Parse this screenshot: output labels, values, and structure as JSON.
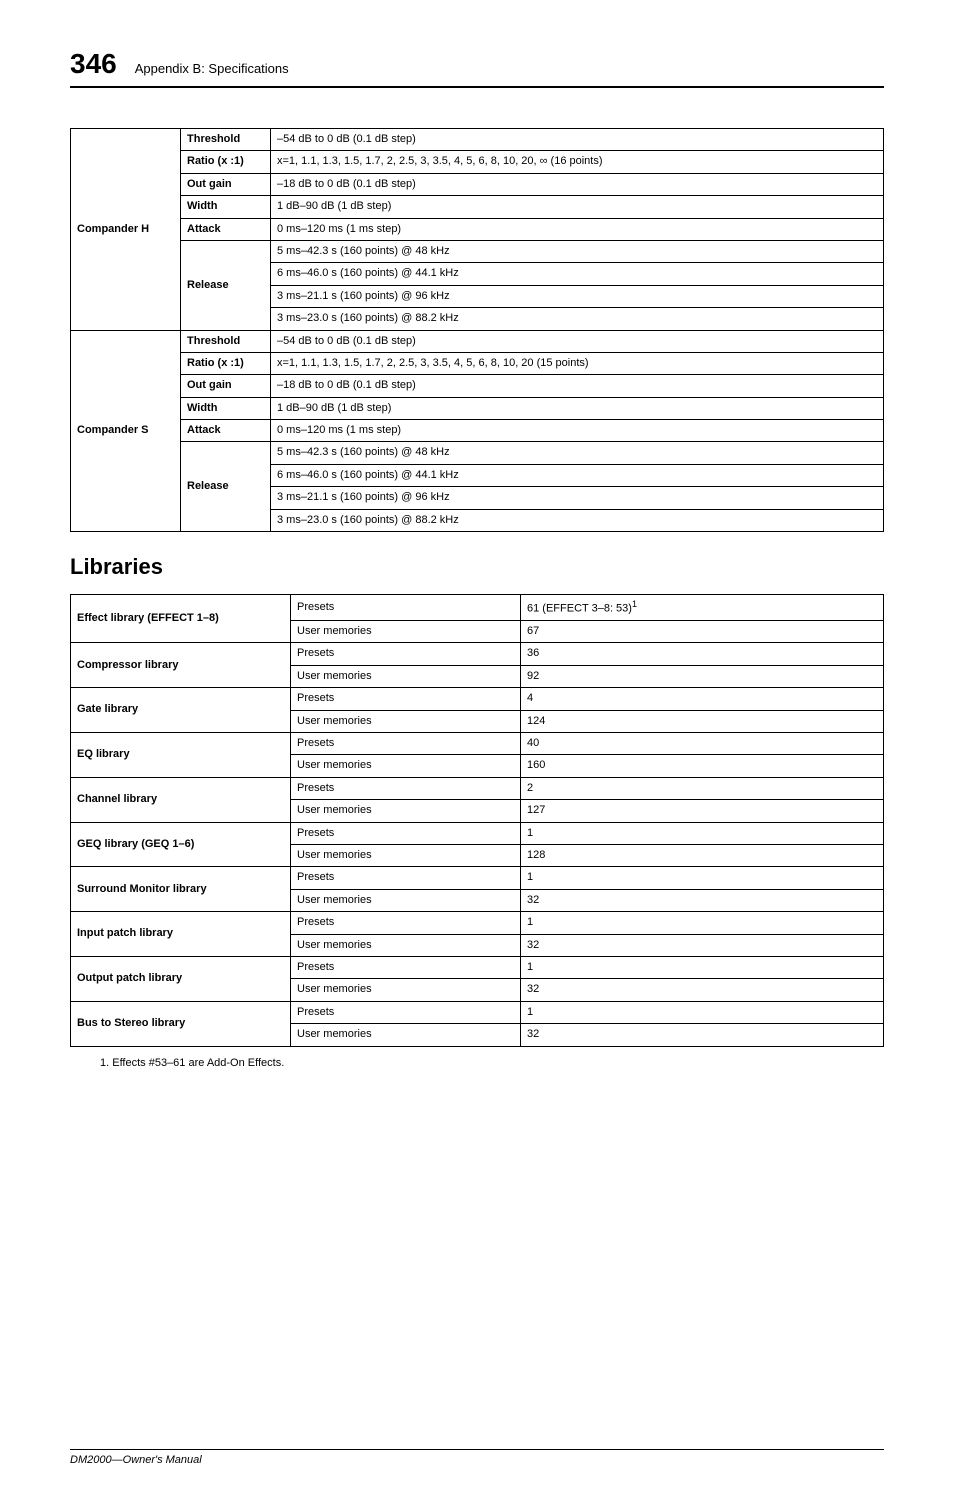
{
  "header": {
    "page_number": "346",
    "section": "Appendix B: Specifications"
  },
  "table1": {
    "groups": [
      {
        "name": "Compander H",
        "rows": [
          {
            "param": "Threshold",
            "vals": [
              "–54 dB to 0 dB (0.1 dB step)"
            ]
          },
          {
            "param": "Ratio (x :1)",
            "vals": [
              "x=1, 1.1, 1.3, 1.5, 1.7, 2, 2.5, 3, 3.5, 4, 5, 6, 8, 10, 20, ∞ (16 points)"
            ]
          },
          {
            "param": "Out gain",
            "vals": [
              "–18 dB to 0 dB (0.1 dB step)"
            ]
          },
          {
            "param": "Width",
            "vals": [
              "1 dB–90 dB (1 dB step)"
            ]
          },
          {
            "param": "Attack",
            "vals": [
              "0 ms–120 ms (1 ms step)"
            ]
          },
          {
            "param": "Release",
            "vals": [
              "5 ms–42.3 s (160 points) @ 48 kHz",
              "6 ms–46.0 s (160 points) @ 44.1 kHz",
              "3 ms–21.1 s (160 points) @ 96 kHz",
              "3 ms–23.0 s (160 points) @ 88.2 kHz"
            ]
          }
        ]
      },
      {
        "name": "Compander S",
        "rows": [
          {
            "param": "Threshold",
            "vals": [
              "–54 dB to 0 dB (0.1 dB step)"
            ]
          },
          {
            "param": "Ratio (x :1)",
            "vals": [
              "x=1, 1.1, 1.3, 1.5, 1.7, 2, 2.5, 3, 3.5, 4, 5, 6, 8, 10, 20 (15 points)"
            ]
          },
          {
            "param": "Out gain",
            "vals": [
              "–18 dB to 0 dB (0.1 dB step)"
            ]
          },
          {
            "param": "Width",
            "vals": [
              "1 dB–90 dB (1 dB step)"
            ]
          },
          {
            "param": "Attack",
            "vals": [
              "0 ms–120 ms (1 ms step)"
            ]
          },
          {
            "param": "Release",
            "vals": [
              "5 ms–42.3 s (160 points) @ 48 kHz",
              "6 ms–46.0 s (160 points) @ 44.1 kHz",
              "3 ms–21.1 s (160 points) @ 96 kHz",
              "3 ms–23.0 s (160 points) @ 88.2 kHz"
            ]
          }
        ]
      }
    ]
  },
  "libraries_heading": "Libraries",
  "table2": {
    "rows": [
      {
        "name": "Effect library (EFFECT 1–8)",
        "presets": "61 (EFFECT 3–8: 53)",
        "presets_sup": "1",
        "user": "67"
      },
      {
        "name": "Compressor library",
        "presets": "36",
        "user": "92"
      },
      {
        "name": "Gate library",
        "presets": "4",
        "user": "124"
      },
      {
        "name": "EQ library",
        "presets": "40",
        "user": "160"
      },
      {
        "name": "Channel library",
        "presets": "2",
        "user": "127"
      },
      {
        "name": "GEQ library (GEQ 1–6)",
        "presets": "1",
        "user": "128"
      },
      {
        "name": "Surround Monitor library",
        "presets": "1",
        "user": "32"
      },
      {
        "name": "Input patch library",
        "presets": "1",
        "user": "32"
      },
      {
        "name": "Output patch library",
        "presets": "1",
        "user": "32"
      },
      {
        "name": "Bus to Stereo library",
        "presets": "1",
        "user": "32"
      }
    ],
    "col_labels": {
      "presets": "Presets",
      "user": "User memories"
    }
  },
  "footnote": "1.  Effects #53–61 are Add-On Effects.",
  "footer": "DM2000—Owner's Manual"
}
